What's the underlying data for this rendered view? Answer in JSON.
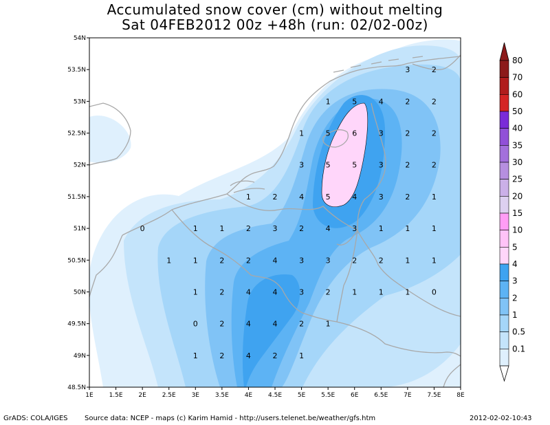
{
  "title_line1": "Accumulated snow cover (cm) without melting",
  "title_line2": "Sat 04FEB2012 00z  +48h (run: 02/02-00z)",
  "footer": {
    "left": "GrADS: COLA/IGES",
    "source": "Source data: NCEP - maps (c) Karim Hamid - http://users.telenet.be/weather/gfs.htm",
    "timestamp": "2012-02-02-10:43"
  },
  "map": {
    "lon_range": [
      1,
      8
    ],
    "lat_range": [
      48.5,
      54
    ],
    "x_ticks": [
      "1E",
      "1.5E",
      "2E",
      "2.5E",
      "3E",
      "3.5E",
      "4E",
      "4.5E",
      "5E",
      "5.5E",
      "6E",
      "6.5E",
      "7E",
      "7.5E",
      "8E"
    ],
    "y_ticks": [
      "48.5N",
      "49N",
      "49.5N",
      "50N",
      "50.5N",
      "51N",
      "51.5N",
      "52N",
      "52.5N",
      "53N",
      "53.5N",
      "54N"
    ],
    "grid_values": [
      {
        "lon": 7.0,
        "lat": 53.5,
        "v": "3"
      },
      {
        "lon": 7.5,
        "lat": 53.5,
        "v": "2"
      },
      {
        "lon": 5.5,
        "lat": 53.0,
        "v": "1"
      },
      {
        "lon": 6.0,
        "lat": 53.0,
        "v": "5"
      },
      {
        "lon": 6.5,
        "lat": 53.0,
        "v": "4"
      },
      {
        "lon": 7.0,
        "lat": 53.0,
        "v": "2"
      },
      {
        "lon": 7.5,
        "lat": 53.0,
        "v": "2"
      },
      {
        "lon": 5.0,
        "lat": 52.5,
        "v": "1"
      },
      {
        "lon": 5.5,
        "lat": 52.5,
        "v": "5"
      },
      {
        "lon": 6.0,
        "lat": 52.5,
        "v": "6"
      },
      {
        "lon": 6.5,
        "lat": 52.5,
        "v": "3"
      },
      {
        "lon": 7.0,
        "lat": 52.5,
        "v": "2"
      },
      {
        "lon": 7.5,
        "lat": 52.5,
        "v": "2"
      },
      {
        "lon": 5.0,
        "lat": 52.0,
        "v": "3"
      },
      {
        "lon": 5.5,
        "lat": 52.0,
        "v": "5"
      },
      {
        "lon": 6.0,
        "lat": 52.0,
        "v": "5"
      },
      {
        "lon": 6.5,
        "lat": 52.0,
        "v": "3"
      },
      {
        "lon": 7.0,
        "lat": 52.0,
        "v": "2"
      },
      {
        "lon": 7.5,
        "lat": 52.0,
        "v": "2"
      },
      {
        "lon": 4.0,
        "lat": 51.5,
        "v": "1"
      },
      {
        "lon": 4.5,
        "lat": 51.5,
        "v": "2"
      },
      {
        "lon": 5.0,
        "lat": 51.5,
        "v": "4"
      },
      {
        "lon": 5.5,
        "lat": 51.5,
        "v": "5"
      },
      {
        "lon": 6.0,
        "lat": 51.5,
        "v": "4"
      },
      {
        "lon": 6.5,
        "lat": 51.5,
        "v": "3"
      },
      {
        "lon": 7.0,
        "lat": 51.5,
        "v": "2"
      },
      {
        "lon": 7.5,
        "lat": 51.5,
        "v": "1"
      },
      {
        "lon": 2.0,
        "lat": 51.0,
        "v": "0"
      },
      {
        "lon": 3.0,
        "lat": 51.0,
        "v": "1"
      },
      {
        "lon": 3.5,
        "lat": 51.0,
        "v": "1"
      },
      {
        "lon": 4.0,
        "lat": 51.0,
        "v": "2"
      },
      {
        "lon": 4.5,
        "lat": 51.0,
        "v": "3"
      },
      {
        "lon": 5.0,
        "lat": 51.0,
        "v": "2"
      },
      {
        "lon": 5.5,
        "lat": 51.0,
        "v": "4"
      },
      {
        "lon": 6.0,
        "lat": 51.0,
        "v": "3"
      },
      {
        "lon": 6.5,
        "lat": 51.0,
        "v": "1"
      },
      {
        "lon": 7.0,
        "lat": 51.0,
        "v": "1"
      },
      {
        "lon": 7.5,
        "lat": 51.0,
        "v": "1"
      },
      {
        "lon": 2.5,
        "lat": 50.5,
        "v": "1"
      },
      {
        "lon": 3.0,
        "lat": 50.5,
        "v": "1"
      },
      {
        "lon": 3.5,
        "lat": 50.5,
        "v": "2"
      },
      {
        "lon": 4.0,
        "lat": 50.5,
        "v": "2"
      },
      {
        "lon": 4.5,
        "lat": 50.5,
        "v": "4"
      },
      {
        "lon": 5.0,
        "lat": 50.5,
        "v": "3"
      },
      {
        "lon": 5.5,
        "lat": 50.5,
        "v": "3"
      },
      {
        "lon": 6.0,
        "lat": 50.5,
        "v": "2"
      },
      {
        "lon": 6.5,
        "lat": 50.5,
        "v": "2"
      },
      {
        "lon": 7.0,
        "lat": 50.5,
        "v": "1"
      },
      {
        "lon": 7.5,
        "lat": 50.5,
        "v": "1"
      },
      {
        "lon": 3.0,
        "lat": 50.0,
        "v": "1"
      },
      {
        "lon": 3.5,
        "lat": 50.0,
        "v": "2"
      },
      {
        "lon": 4.0,
        "lat": 50.0,
        "v": "4"
      },
      {
        "lon": 4.5,
        "lat": 50.0,
        "v": "4"
      },
      {
        "lon": 5.0,
        "lat": 50.0,
        "v": "3"
      },
      {
        "lon": 5.5,
        "lat": 50.0,
        "v": "2"
      },
      {
        "lon": 6.0,
        "lat": 50.0,
        "v": "1"
      },
      {
        "lon": 6.5,
        "lat": 50.0,
        "v": "1"
      },
      {
        "lon": 7.0,
        "lat": 50.0,
        "v": "1"
      },
      {
        "lon": 7.5,
        "lat": 50.0,
        "v": "0"
      },
      {
        "lon": 3.0,
        "lat": 49.5,
        "v": "0"
      },
      {
        "lon": 3.5,
        "lat": 49.5,
        "v": "2"
      },
      {
        "lon": 4.0,
        "lat": 49.5,
        "v": "4"
      },
      {
        "lon": 4.5,
        "lat": 49.5,
        "v": "4"
      },
      {
        "lon": 5.0,
        "lat": 49.5,
        "v": "2"
      },
      {
        "lon": 5.5,
        "lat": 49.5,
        "v": "1"
      },
      {
        "lon": 3.0,
        "lat": 49.0,
        "v": "1"
      },
      {
        "lon": 3.5,
        "lat": 49.0,
        "v": "2"
      },
      {
        "lon": 4.0,
        "lat": 49.0,
        "v": "4"
      },
      {
        "lon": 4.5,
        "lat": 49.0,
        "v": "2"
      },
      {
        "lon": 5.0,
        "lat": 49.0,
        "v": "1"
      }
    ]
  },
  "legend": {
    "levels": [
      {
        "label": "80",
        "color": "#8c1a1a"
      },
      {
        "label": "70",
        "color": "#b01c1c"
      },
      {
        "label": "60",
        "color": "#d42424"
      },
      {
        "label": "50",
        "color": "#7a2bd8"
      },
      {
        "label": "40",
        "color": "#9150d8"
      },
      {
        "label": "35",
        "color": "#a370dc"
      },
      {
        "label": "30",
        "color": "#b68fe0"
      },
      {
        "label": "25",
        "color": "#cbb0e8"
      },
      {
        "label": "20",
        "color": "#ddd0f0"
      },
      {
        "label": "15",
        "color": "#ff9df5"
      },
      {
        "label": "10",
        "color": "#ffc3f7"
      },
      {
        "label": "5",
        "color": "#ffd6fa"
      },
      {
        "label": "4",
        "color": "#3fa3f0"
      },
      {
        "label": "3",
        "color": "#5db3f4"
      },
      {
        "label": "2",
        "color": "#80c3f6"
      },
      {
        "label": "1",
        "color": "#a5d6f9"
      },
      {
        "label": "0.5",
        "color": "#c4e4fb"
      },
      {
        "label": "0.1",
        "color": "#dff0fd"
      }
    ],
    "top_triangle_color": "#8c1a1a",
    "bottom_triangle_color": "#ffffff"
  }
}
